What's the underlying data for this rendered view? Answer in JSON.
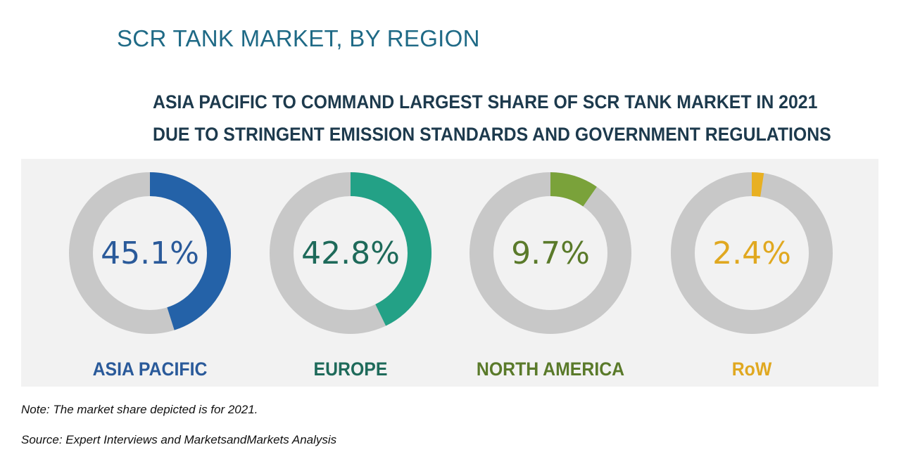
{
  "title": "SCR TANK MARKET, BY REGION",
  "subtitle_line1": "ASIA PACIFIC TO COMMAND LARGEST SHARE OF SCR TANK MARKET IN 2021",
  "subtitle_line2": "DUE TO STRINGENT EMISSION STANDARDS AND GOVERNMENT REGULATIONS",
  "note": "Note: The market share depicted is for 2021.",
  "source": "Source: Expert Interviews and MarketsandMarkets Analysis",
  "colors": {
    "track": "#c8c8c8",
    "panel": "#f2f2f2",
    "asia_pacific": "#2462a8",
    "europe": "#23a186",
    "north_america": "#7aa23a",
    "row": "#e8b022"
  },
  "chart_data": {
    "type": "pie",
    "variant": "donut",
    "title": "SCR TANK MARKET, BY REGION",
    "categories": [
      "ASIA PACIFIC",
      "EUROPE",
      "NORTH AMERICA",
      "RoW"
    ],
    "values": [
      45.1,
      42.8,
      9.7,
      2.4
    ],
    "value_labels": [
      "45.1%",
      "42.8%",
      "9.7%",
      "2.4%"
    ],
    "label_colors": [
      "#2a5a9a",
      "#1e6a5a",
      "#5a7a2a",
      "#e0a820"
    ]
  }
}
